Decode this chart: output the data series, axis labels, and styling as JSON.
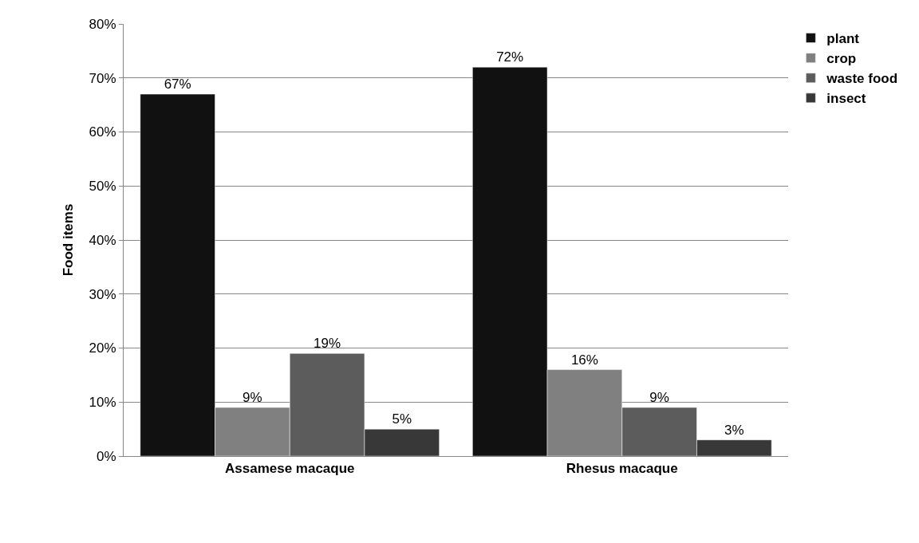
{
  "chart_data": {
    "type": "bar",
    "ylabel": "Food items",
    "categories": [
      "Assamese macaque",
      "Rhesus macaque"
    ],
    "series": [
      {
        "name": "plant",
        "color": "#111111",
        "values": [
          67,
          72
        ],
        "value_labels": [
          "67%",
          "72%"
        ]
      },
      {
        "name": "crop",
        "color": "#808080",
        "values": [
          9,
          16
        ],
        "value_labels": [
          "9%",
          "16%"
        ]
      },
      {
        "name": "waste food",
        "color": "#5c5c5c",
        "values": [
          19,
          9
        ],
        "value_labels": [
          "19%",
          "9%"
        ]
      },
      {
        "name": "insect",
        "color": "#383838",
        "values": [
          5,
          3
        ],
        "value_labels": [
          "5%",
          "3%"
        ]
      }
    ],
    "ylim": [
      0,
      80
    ],
    "yticks": [
      {
        "value": 0,
        "label": "0%"
      },
      {
        "value": 10,
        "label": "10%"
      },
      {
        "value": 20,
        "label": "20%"
      },
      {
        "value": 30,
        "label": "30%"
      },
      {
        "value": 40,
        "label": "40%"
      },
      {
        "value": 50,
        "label": "50%"
      },
      {
        "value": 60,
        "label": "60%"
      },
      {
        "value": 70,
        "label": "70%"
      },
      {
        "value": 80,
        "label": "80%"
      }
    ],
    "grid": "y",
    "legend": "top right"
  }
}
